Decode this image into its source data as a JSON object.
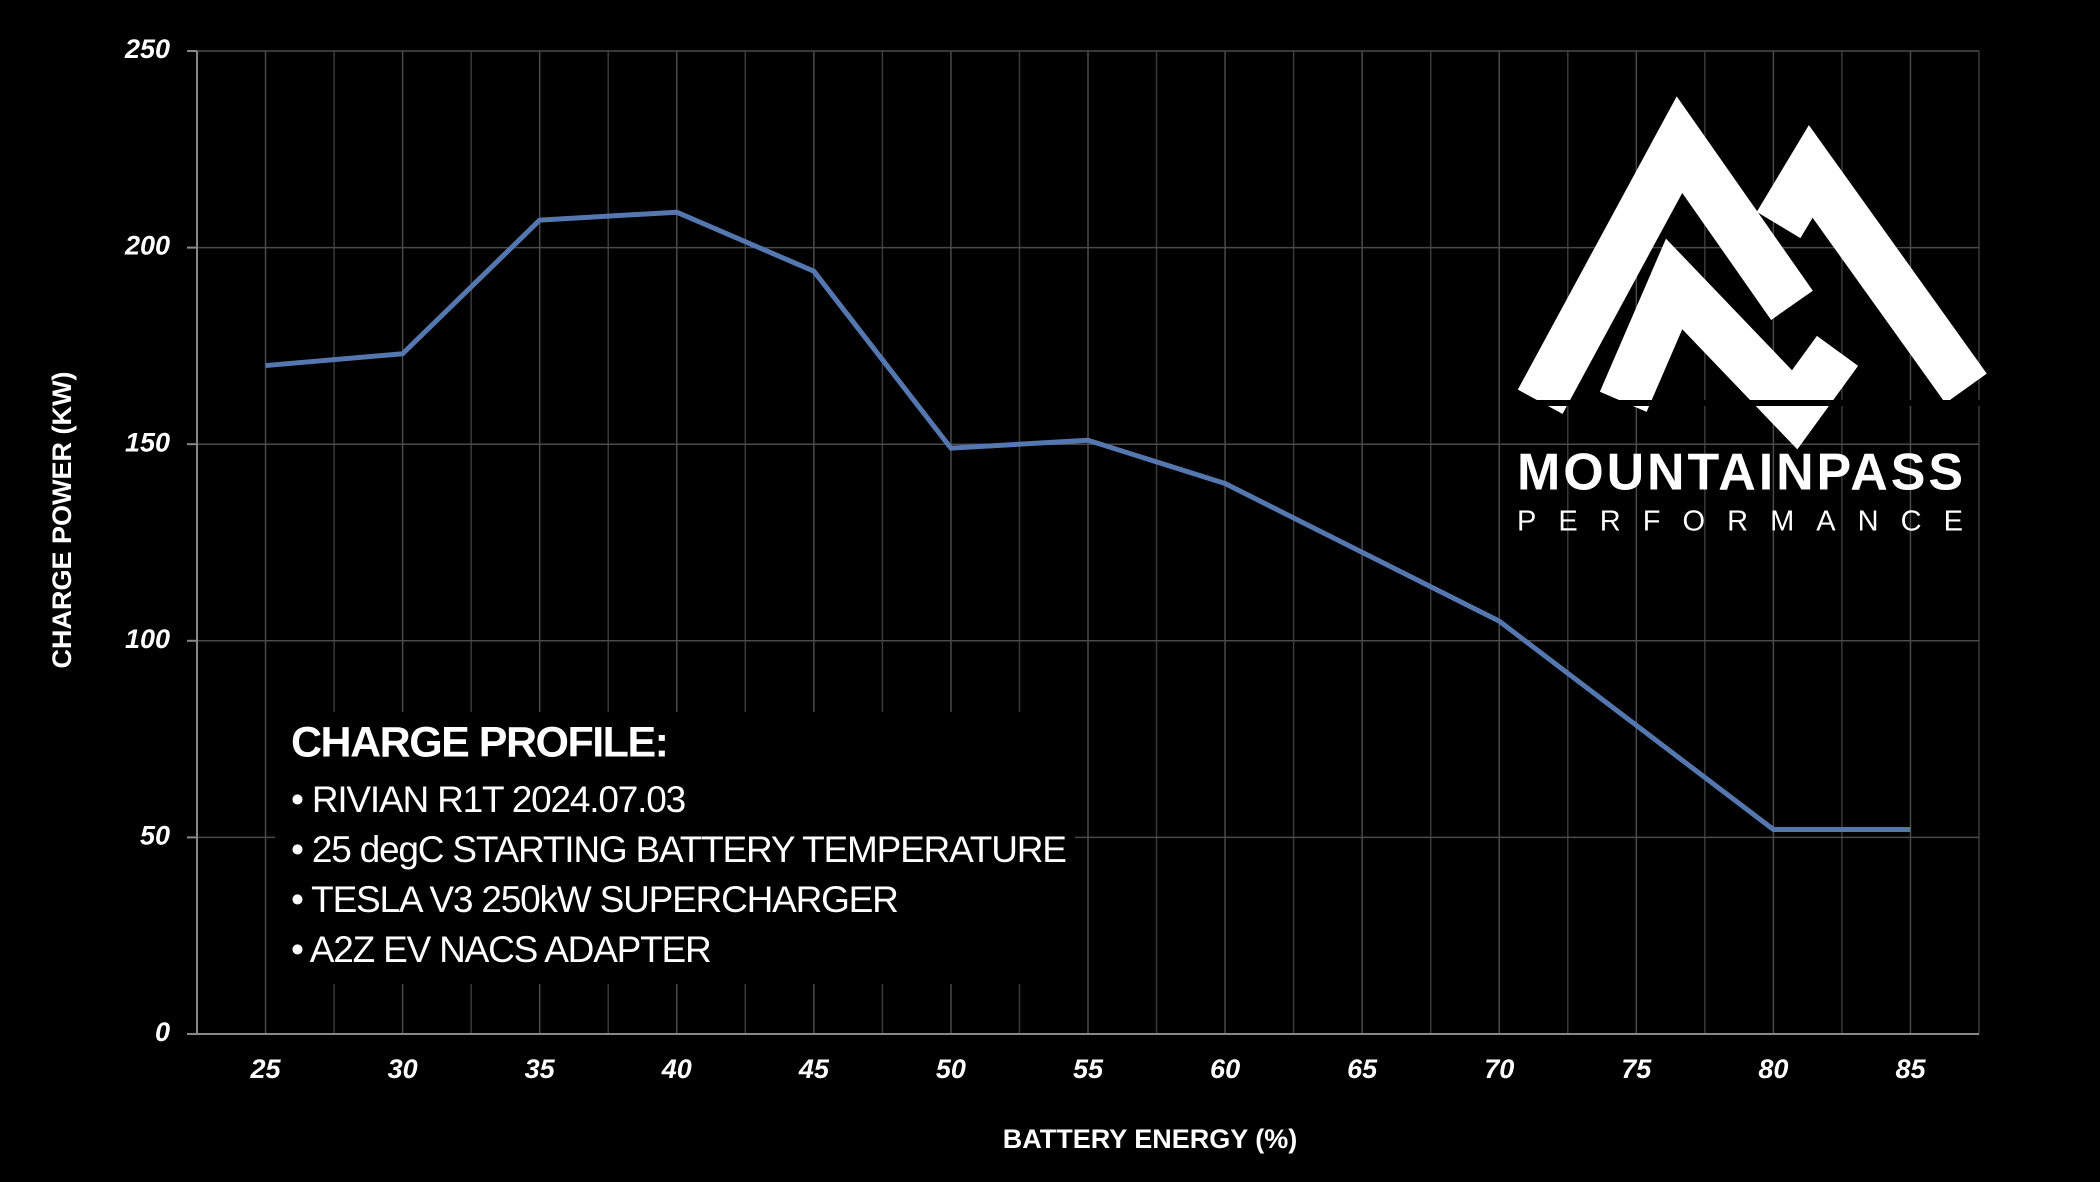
{
  "chart_data": {
    "type": "line",
    "x_label": "BATTERY ENERGY (%)",
    "y_label": "CHARGE POWER (KW)",
    "x": [
      25,
      30,
      35,
      40,
      45,
      50,
      55,
      60,
      70,
      80,
      85
    ],
    "series": [
      {
        "name": "Rivian R1T",
        "color": "#5577b0",
        "values": [
          170,
          173,
          207,
          209,
          194,
          149,
          151,
          140,
          105,
          52,
          52
        ]
      }
    ],
    "xlim": [
      22.5,
      87.5
    ],
    "xticks": [
      25,
      30,
      35,
      40,
      45,
      50,
      55,
      60,
      65,
      70,
      75,
      80,
      85
    ],
    "x_minor_grid": [
      22.5,
      27.5,
      32.5,
      37.5,
      42.5,
      47.5,
      52.5,
      57.5,
      62.5,
      67.5,
      72.5,
      77.5,
      82.5,
      87.5
    ],
    "ylim": [
      0,
      250
    ],
    "yticks": [
      0,
      50,
      100,
      150,
      200,
      250
    ],
    "grid": true,
    "annotation": {
      "title": "CHARGE PROFILE:",
      "lines": [
        "• RIVIAN R1T 2024.07.03",
        "• 25 degC STARTING BATTERY TEMPERATURE",
        "• TESLA V3 250kW SUPERCHARGER",
        "• A2Z EV NACS ADAPTER"
      ]
    },
    "logo": {
      "name": "MOUNTAINPASS",
      "tagline": "PERFORMANCE"
    }
  }
}
